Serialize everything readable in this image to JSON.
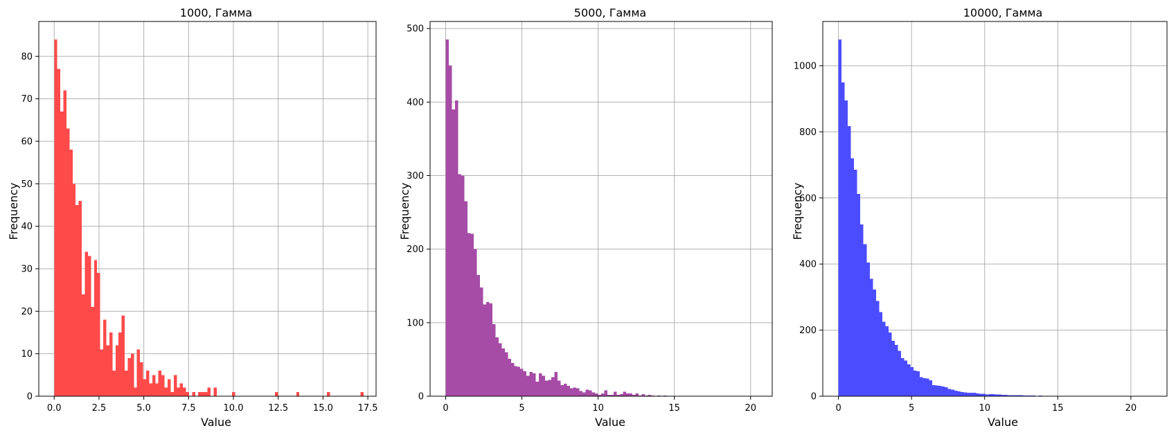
{
  "chart_data": [
    {
      "type": "bar",
      "title": "1000, Гамма",
      "xlabel": "Value",
      "ylabel": "Frequency",
      "color": "#ff4a4a",
      "grid": true,
      "xlim": [
        -0.86,
        17.96
      ],
      "ylim": [
        0,
        88.2
      ],
      "xticks": [
        0,
        2.5,
        5,
        7.5,
        10,
        12.5,
        15,
        17.5
      ],
      "xtick_labels": [
        "0.0",
        "2.5",
        "5.0",
        "7.5",
        "10.0",
        "12.5",
        "15.0",
        "17.5"
      ],
      "yticks": [
        0,
        10,
        20,
        30,
        40,
        50,
        60,
        70,
        80
      ],
      "ytick_labels": [
        "0",
        "10",
        "20",
        "30",
        "40",
        "50",
        "60",
        "70",
        "80"
      ],
      "bin_start": 0.0,
      "bin_width": 0.171,
      "values": [
        84,
        77,
        67,
        72,
        63,
        58,
        50,
        45,
        46,
        24,
        34,
        33,
        21,
        32,
        29,
        11,
        18,
        12,
        15,
        6,
        12,
        15,
        19,
        6,
        9,
        10,
        2,
        11,
        8,
        4,
        6,
        3,
        5,
        3,
        6,
        5,
        2,
        4,
        1,
        5,
        2,
        3,
        2,
        1,
        0,
        1,
        0,
        1,
        1,
        1,
        2,
        0,
        2,
        0,
        0,
        0,
        0,
        0,
        1,
        0,
        0,
        0,
        0,
        0,
        0,
        0,
        0,
        0,
        0,
        0,
        0,
        0,
        1,
        0,
        0,
        0,
        0,
        0,
        0,
        1,
        0,
        0,
        0,
        0,
        0,
        0,
        0,
        0,
        0,
        1,
        0,
        0,
        0,
        0,
        0,
        0,
        0,
        0,
        0,
        0,
        1
      ]
    },
    {
      "type": "bar",
      "title": "5000, Гамма",
      "xlabel": "Value",
      "ylabel": "Frequency",
      "color": "#a64ca6",
      "grid": true,
      "xlim": [
        -1.02,
        21.42
      ],
      "ylim": [
        0,
        509.6
      ],
      "xticks": [
        0,
        5,
        10,
        15,
        20
      ],
      "xtick_labels": [
        "0",
        "5",
        "10",
        "15",
        "20"
      ],
      "yticks": [
        0,
        100,
        200,
        300,
        400,
        500
      ],
      "ytick_labels": [
        "0",
        "100",
        "200",
        "300",
        "400",
        "500"
      ],
      "bin_start": 0.0,
      "bin_width": 0.204,
      "values": [
        485,
        450,
        390,
        402,
        302,
        300,
        265,
        222,
        221,
        200,
        165,
        148,
        125,
        128,
        126,
        98,
        80,
        72,
        65,
        60,
        51,
        45,
        41,
        40,
        37,
        34,
        28,
        33,
        31,
        20,
        31,
        28,
        21,
        22,
        26,
        33,
        21,
        15,
        17,
        14,
        11,
        12,
        11,
        7,
        5,
        9,
        8,
        5,
        4,
        2,
        4,
        8,
        2,
        2,
        6,
        2,
        3,
        6,
        4,
        4,
        2,
        4,
        1,
        3,
        1,
        2,
        1,
        0,
        1,
        0,
        1,
        0,
        0,
        0,
        0,
        0,
        0,
        0,
        0,
        0,
        0,
        0,
        0,
        0,
        0,
        0,
        0,
        0,
        0,
        0,
        0,
        0,
        0,
        0,
        0,
        0,
        0,
        0,
        0,
        0,
        0,
        0
      ]
    },
    {
      "type": "bar",
      "title": "10000, Гамма",
      "xlabel": "Value",
      "ylabel": "Frequency",
      "color": "#4c4cff",
      "grid": true,
      "xlim": [
        -1.07,
        22.47
      ],
      "ylim": [
        0,
        1134
      ],
      "xticks": [
        0,
        5,
        10,
        15,
        20
      ],
      "xtick_labels": [
        "0",
        "5",
        "10",
        "15",
        "20"
      ],
      "yticks": [
        0,
        200,
        400,
        600,
        800,
        1000
      ],
      "ytick_labels": [
        "0",
        "200",
        "400",
        "600",
        "800",
        "1000"
      ],
      "bin_start": 0.0,
      "bin_width": 0.214,
      "values": [
        1080,
        950,
        895,
        818,
        720,
        685,
        612,
        520,
        460,
        405,
        355,
        323,
        288,
        255,
        225,
        212,
        193,
        168,
        155,
        137,
        115,
        108,
        96,
        88,
        78,
        75,
        58,
        54,
        53,
        48,
        34,
        33,
        31,
        29,
        27,
        22,
        20,
        17,
        15,
        13,
        12,
        11,
        11,
        10,
        8,
        7,
        7,
        5,
        6,
        6,
        5,
        5,
        4,
        4,
        3,
        3,
        3,
        3,
        3,
        2,
        2,
        2,
        2,
        1,
        2,
        1,
        1,
        1,
        1,
        1,
        1,
        1,
        1,
        1,
        1,
        1,
        1,
        1,
        0,
        0,
        0,
        0,
        0,
        0,
        0,
        0,
        0,
        0,
        0,
        0,
        0,
        0,
        0,
        0,
        0,
        0,
        0,
        0,
        0,
        0,
        0
      ]
    }
  ]
}
